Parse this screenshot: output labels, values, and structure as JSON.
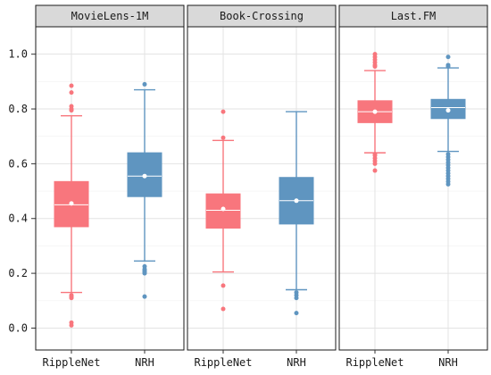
{
  "chart_data": {
    "type": "boxplot",
    "ylim": [
      -0.08,
      1.1
    ],
    "yticks": [
      0.0,
      0.2,
      0.4,
      0.6,
      0.8,
      1.0
    ],
    "ytick_labels": [
      "0.0",
      "0.2",
      "0.4",
      "0.6",
      "0.8",
      "1.0"
    ],
    "grid": true,
    "categories": [
      "RippleNet",
      "NRH"
    ],
    "colors": {
      "RippleNet": "#f8767d",
      "NRH": "#5f95c0"
    },
    "panels": [
      {
        "title": "MovieLens-1M",
        "boxes": [
          {
            "category": "RippleNet",
            "min": 0.13,
            "q1": 0.37,
            "median": 0.45,
            "q3": 0.535,
            "max": 0.775,
            "mean": 0.455,
            "outliers": [
              0.885,
              0.86,
              0.81,
              0.8,
              0.795,
              0.12,
              0.115,
              0.11,
              0.02,
              0.01
            ]
          },
          {
            "category": "NRH",
            "min": 0.245,
            "q1": 0.48,
            "median": 0.555,
            "q3": 0.64,
            "max": 0.87,
            "mean": 0.555,
            "outliers": [
              0.89,
              0.225,
              0.215,
              0.21,
              0.205,
              0.2,
              0.115
            ]
          }
        ]
      },
      {
        "title": "Book-Crossing",
        "boxes": [
          {
            "category": "RippleNet",
            "min": 0.205,
            "q1": 0.365,
            "median": 0.43,
            "q3": 0.49,
            "max": 0.685,
            "mean": 0.435,
            "outliers": [
              0.79,
              0.695,
              0.155,
              0.07
            ]
          },
          {
            "category": "NRH",
            "min": 0.14,
            "q1": 0.38,
            "median": 0.465,
            "q3": 0.55,
            "max": 0.79,
            "mean": 0.465,
            "outliers": [
              0.13,
              0.12,
              0.11,
              0.055
            ]
          }
        ]
      },
      {
        "title": "Last.FM",
        "boxes": [
          {
            "category": "RippleNet",
            "min": 0.64,
            "q1": 0.75,
            "median": 0.79,
            "q3": 0.83,
            "max": 0.94,
            "mean": 0.79,
            "outliers": [
              1.0,
              0.99,
              0.98,
              0.97,
              0.96,
              0.955,
              0.635,
              0.63,
              0.62,
              0.61,
              0.6,
              0.575
            ]
          },
          {
            "category": "NRH",
            "min": 0.645,
            "q1": 0.765,
            "median": 0.805,
            "q3": 0.835,
            "max": 0.95,
            "mean": 0.795,
            "outliers": [
              0.99,
              0.96,
              0.955,
              0.635,
              0.625,
              0.615,
              0.605,
              0.595,
              0.585,
              0.575,
              0.565,
              0.555,
              0.545,
              0.535,
              0.525
            ]
          }
        ]
      }
    ]
  }
}
